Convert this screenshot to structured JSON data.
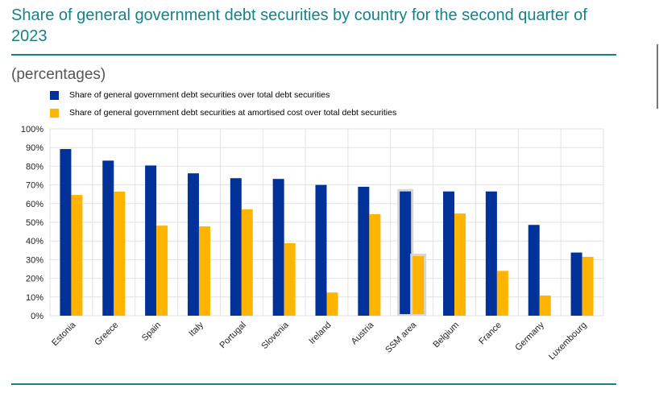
{
  "colors": {
    "series1": "#003299",
    "series2": "#ffb400",
    "grid": "#e2e2e2",
    "title": "#17818a"
  },
  "chart_data": {
    "type": "bar",
    "title": "Share of general government debt securities by country for the second quarter of 2023",
    "subtitle": "(percentages)",
    "xlabel": "",
    "ylabel": "",
    "ylim": [
      0,
      100
    ],
    "yticks": [
      0,
      10,
      20,
      30,
      40,
      50,
      60,
      70,
      80,
      90,
      100
    ],
    "ytick_labels": [
      "0%",
      "10%",
      "20%",
      "30%",
      "40%",
      "50%",
      "60%",
      "70%",
      "80%",
      "90%",
      "100%"
    ],
    "categories": [
      "Estonia",
      "Greece",
      "Spain",
      "Italy",
      "Portugal",
      "Slovenia",
      "Ireland",
      "Austria",
      "SSM area",
      "Belgium",
      "France",
      "Germany",
      "Luxembourg"
    ],
    "highlighted_category": "SSM area",
    "legend_position": "top-left",
    "grid": true,
    "series": [
      {
        "name": "Share of general government debt securities over total debt securities",
        "values": [
          89.2,
          83.0,
          80.4,
          76.2,
          73.6,
          73.2,
          70.0,
          69.0,
          66.5,
          66.5,
          66.5,
          48.6,
          33.8
        ]
      },
      {
        "name": "Share of general government debt securities at amortised cost over total debt securities",
        "values": [
          64.6,
          66.4,
          48.2,
          47.8,
          56.9,
          38.8,
          12.4,
          54.3,
          31.9,
          54.7,
          24.0,
          10.8,
          31.5
        ]
      }
    ]
  }
}
